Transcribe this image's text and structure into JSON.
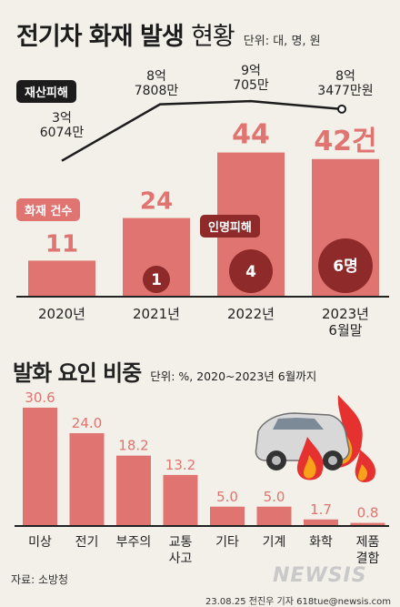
{
  "header": {
    "title_bold": "전기차 화재 발생",
    "title_thin": "현황",
    "unit": "단위: 대, 명, 원"
  },
  "labels": {
    "property": "재산피해",
    "fires": "화재 건수",
    "casualty": "인명피해"
  },
  "section2": {
    "title": "발화 요인 비중",
    "unit": "단위: %, 2020~2023년 6월까지"
  },
  "footer": {
    "source": "자료: 소방청",
    "credit": "23.08.25 전진우 기자 618tue@newsis.com",
    "watermark": "NEWSIS"
  },
  "colors": {
    "bar": "#e07470",
    "line": "#1c1c1c",
    "casualty": "#8e2a2a",
    "ground": "#222222"
  },
  "chart_data": [
    {
      "type": "bar",
      "categories": [
        "2020년",
        "2021년",
        "2022년",
        "2023년\n6월말"
      ],
      "series": [
        {
          "name": "화재 건수",
          "values": [
            11,
            24,
            44,
            42
          ],
          "value_labels": [
            "11",
            "24",
            "44",
            "42건"
          ]
        },
        {
          "name": "인명피해",
          "values": [
            null,
            1,
            4,
            6
          ],
          "value_labels": [
            "",
            "1",
            "4",
            "6명"
          ]
        },
        {
          "name": "재산피해",
          "values": [
            360740000,
            878080000,
            907050000,
            834770000
          ],
          "value_labels": [
            "3억\n6074만",
            "8억\n7808만",
            "9억\n705만",
            "8억\n3477만원"
          ]
        }
      ]
    },
    {
      "type": "bar",
      "categories": [
        "미상",
        "전기",
        "부주의",
        "교통\n사고",
        "기타",
        "기계",
        "화학",
        "제품\n결함"
      ],
      "values": [
        30.6,
        24.0,
        18.2,
        13.2,
        5.0,
        5.0,
        1.7,
        0.8
      ],
      "value_labels": [
        "30.6",
        "24.0",
        "18.2",
        "13.2",
        "5.0",
        "5.0",
        "1.7",
        "0.8"
      ]
    }
  ]
}
